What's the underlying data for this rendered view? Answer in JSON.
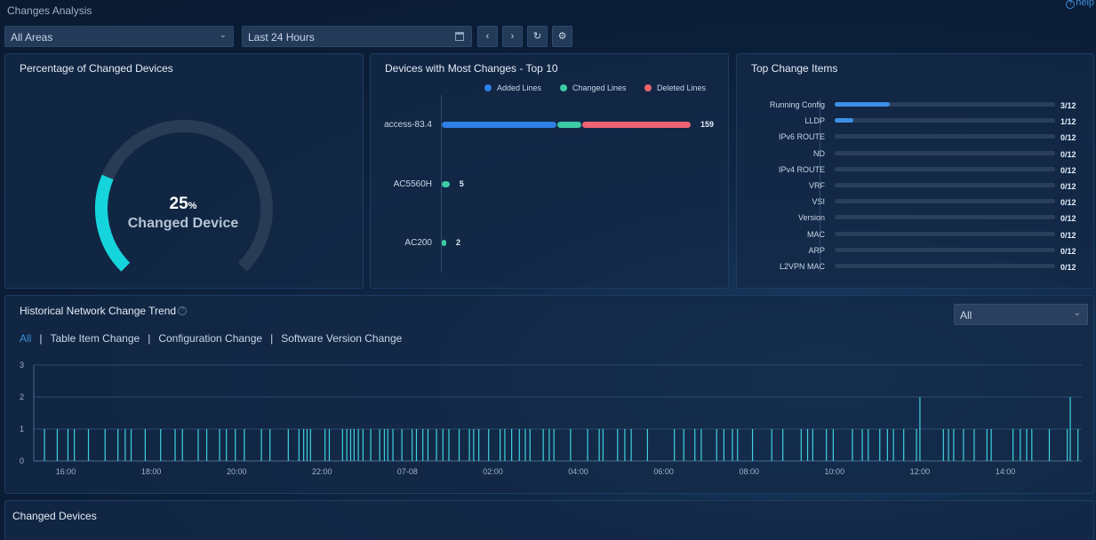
{
  "app": {
    "title": "Changes Analysis",
    "help": "help"
  },
  "toolbar": {
    "area_select": "All Areas",
    "time_select": "Last 24 Hours",
    "prev_icon": "chevron-left-icon",
    "next_icon": "chevron-right-icon",
    "refresh_icon": "refresh-icon",
    "settings_icon": "gear-icon"
  },
  "percentage_panel": {
    "title": "Percentage of Changed Devices",
    "value": "25",
    "unit": "%",
    "label": "Changed Device",
    "fraction": 0.25,
    "colors": {
      "fill": "#16d4dc",
      "track": "#2a3b55"
    }
  },
  "top_devices_panel": {
    "title": "Devices with Most Changes - Top 10",
    "legend": [
      {
        "name": "Added Lines",
        "color": "#2f80e4"
      },
      {
        "name": "Changed Lines",
        "color": "#3ccaa7"
      },
      {
        "name": "Deleted Lines",
        "color": "#ef6272"
      }
    ],
    "devices": [
      {
        "name": "access-83.4",
        "added": 74,
        "changed": 15,
        "deleted": 70,
        "total": "159"
      },
      {
        "name": "AC5560H",
        "added": 0,
        "changed": 5,
        "deleted": 0,
        "total": "5"
      },
      {
        "name": "AC200",
        "added": 0,
        "changed": 2,
        "deleted": 0,
        "total": "2"
      }
    ]
  },
  "change_items_panel": {
    "title": "Top Change Items",
    "items": [
      {
        "name": "Running Config",
        "count": 3,
        "total": 12,
        "text": "3/12"
      },
      {
        "name": "LLDP",
        "count": 1,
        "total": 12,
        "text": "1/12"
      },
      {
        "name": "IPv6 ROUTE",
        "count": 0,
        "total": 12,
        "text": "0/12"
      },
      {
        "name": "ND",
        "count": 0,
        "total": 12,
        "text": "0/12"
      },
      {
        "name": "IPv4 ROUTE",
        "count": 0,
        "total": 12,
        "text": "0/12"
      },
      {
        "name": "VRF",
        "count": 0,
        "total": 12,
        "text": "0/12"
      },
      {
        "name": "VSI",
        "count": 0,
        "total": 12,
        "text": "0/12"
      },
      {
        "name": "Version",
        "count": 0,
        "total": 12,
        "text": "0/12"
      },
      {
        "name": "MAC",
        "count": 0,
        "total": 12,
        "text": "0/12"
      },
      {
        "name": "ARP",
        "count": 0,
        "total": 12,
        "text": "0/12"
      },
      {
        "name": "L2VPN MAC",
        "count": 0,
        "total": 12,
        "text": "0/12"
      }
    ]
  },
  "trend_panel": {
    "title": "Historical Network Change Trend",
    "filter_select": "All",
    "tabs": [
      {
        "label": "All",
        "active": true
      },
      {
        "label": "Table Item Change",
        "active": false
      },
      {
        "label": "Configuration Change",
        "active": false
      },
      {
        "label": "Software Version Change",
        "active": false
      }
    ]
  },
  "chart_data": {
    "type": "bar",
    "title": "",
    "xlabel": "",
    "ylabel": "",
    "x_tick_labels": [
      "16:00",
      "18:00",
      "20:00",
      "22:00",
      "07-08",
      "02:00",
      "04:00",
      "06:00",
      "08:00",
      "10:00",
      "12:00",
      "14:00"
    ],
    "x_ticks_hours": [
      16,
      18,
      20,
      22,
      24,
      26,
      28,
      30,
      32,
      34,
      36,
      38
    ],
    "y_ticks": [
      0,
      1,
      2,
      3
    ],
    "ylim": [
      0,
      3
    ],
    "xlim_hours": [
      15.25,
      39.79
    ],
    "grid": true,
    "color": "#3fd0e0",
    "series": [
      {
        "x_hours": [
          15.5,
          15.8,
          16.05,
          16.2,
          16.53,
          16.92,
          17.22,
          17.39,
          17.53,
          17.86,
          18.22,
          18.56,
          18.73,
          19.1,
          19.3,
          19.6,
          19.76,
          19.97,
          20.18,
          20.58,
          20.78,
          21.21,
          21.46,
          21.57,
          21.65,
          21.73,
          22.07,
          22.17,
          22.48,
          22.58,
          22.67,
          22.75,
          22.85,
          22.96,
          23.14,
          23.35,
          23.46,
          23.54,
          23.66,
          23.87,
          24.11,
          24.21,
          24.36,
          24.48,
          24.68,
          24.83,
          24.97,
          25.21,
          25.45,
          25.55,
          25.67,
          25.9,
          26.17,
          26.28,
          26.44,
          26.62,
          26.76,
          26.87,
          27.18,
          27.32,
          27.43,
          27.82,
          28.22,
          28.49,
          28.58,
          28.92,
          29.09,
          29.24,
          29.62,
          30.25,
          30.47,
          30.73,
          30.88,
          31.24,
          31.41,
          31.61,
          31.73,
          32.08,
          32.53,
          32.79,
          33.22,
          33.37,
          33.49,
          33.81,
          33.97,
          34.42,
          34.65,
          34.79,
          35.06,
          35.24,
          35.38,
          35.62,
          35.92,
          36.0,
          36.55,
          36.67,
          36.79,
          37.02,
          37.27,
          37.57,
          37.67,
          38.18,
          38.35,
          38.5,
          38.62,
          39.03,
          39.45,
          39.52,
          39.7
        ],
        "values": [
          1,
          1,
          1,
          1,
          1,
          1,
          1,
          1,
          1,
          1,
          1,
          1,
          1,
          1,
          1,
          1,
          1,
          1,
          1,
          1,
          1,
          1,
          1,
          1,
          1,
          1,
          1,
          1,
          1,
          1,
          1,
          1,
          1,
          1,
          1,
          1,
          1,
          1,
          1,
          1,
          1,
          1,
          1,
          1,
          1,
          1,
          1,
          1,
          1,
          1,
          1,
          1,
          1,
          1,
          1,
          1,
          1,
          1,
          1,
          1,
          1,
          1,
          1,
          1,
          1,
          1,
          1,
          1,
          1,
          1,
          1,
          1,
          1,
          1,
          1,
          1,
          1,
          1,
          1,
          1,
          1,
          1,
          1,
          1,
          1,
          1,
          1,
          1,
          1,
          1,
          1,
          1,
          1,
          2,
          1,
          1,
          1,
          1,
          1,
          1,
          1,
          1,
          1,
          1,
          1,
          1,
          1,
          2,
          1
        ]
      }
    ]
  },
  "changed_devices_panel": {
    "title": "Changed Devices"
  }
}
